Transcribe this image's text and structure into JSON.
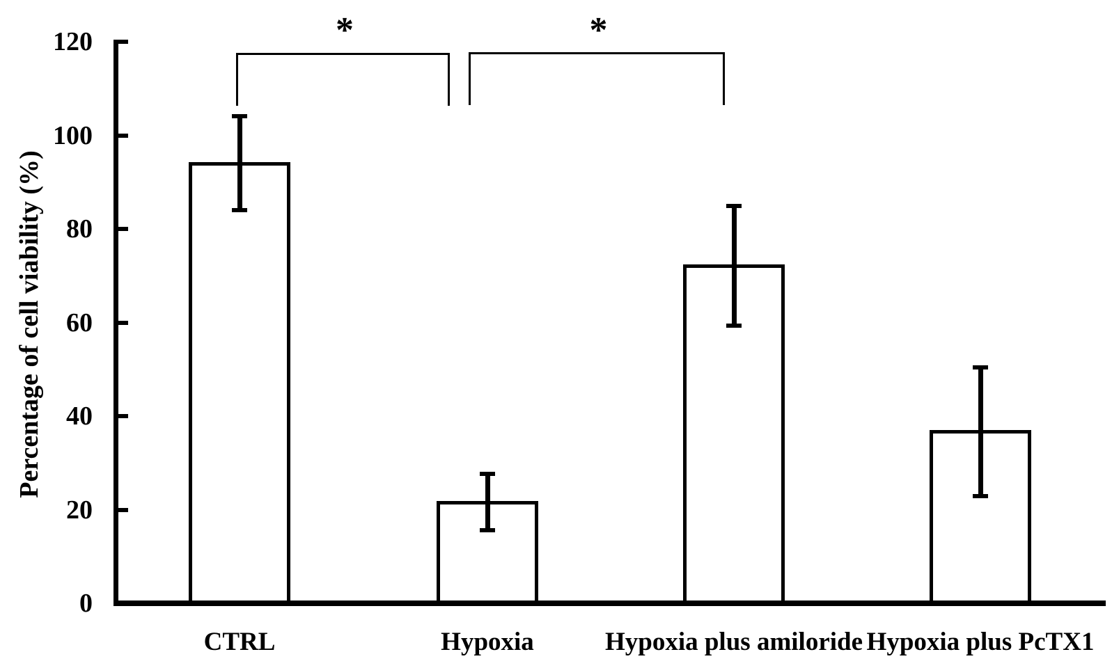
{
  "figure": {
    "background": "#ffffff",
    "ink_color": "#000000"
  },
  "chart_data": {
    "type": "bar",
    "title": "",
    "xlabel": "",
    "ylabel": "Percentage of cell viability (%)",
    "ylim": [
      0,
      120
    ],
    "yticks": [
      0,
      20,
      40,
      60,
      80,
      100,
      120
    ],
    "grid": "off",
    "legend": "none",
    "categories": [
      "CTRL",
      "Hypoxia",
      "Hypoxia plus amiloride",
      "Hypoxia plus PcTX1"
    ],
    "values": [
      94.3,
      21.9,
      72.4,
      37.0
    ],
    "error_up": [
      9.8,
      5.8,
      12.5,
      13.4
    ],
    "error_down": [
      10.3,
      6.3,
      13.1,
      14.1
    ],
    "bar_fill": "#ffffff",
    "bar_border": "#000000",
    "significance": [
      {
        "label": "*",
        "from_category": "CTRL",
        "to_category": "Hypoxia"
      },
      {
        "label": "*",
        "from_category": "Hypoxia",
        "to_category": "Hypoxia plus amiloride"
      }
    ]
  }
}
